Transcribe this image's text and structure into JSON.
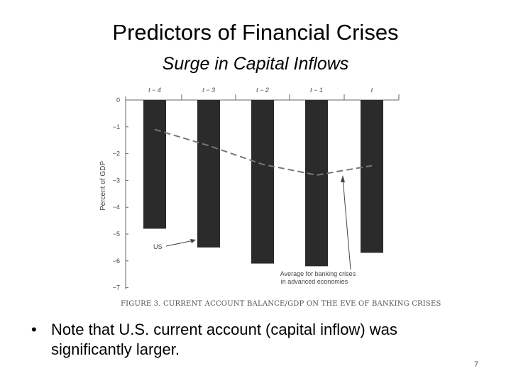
{
  "slide": {
    "title": "Predictors of Financial Crises",
    "subtitle": "Surge in Capital Inflows",
    "figure_caption": "FIGURE 3. CURRENT ACCOUNT BALANCE/GDP ON THE EVE OF BANKING CRISES",
    "bullet_marker": "•",
    "bullet_text": "Note that U.S. current account (capital inflow) was significantly larger.",
    "page_number": "7"
  },
  "chart_data": {
    "type": "bar",
    "categories": [
      "t − 4",
      "t − 3",
      "t − 2",
      "t − 1",
      "t"
    ],
    "ylabel": "Percent of GDP",
    "ylim": [
      -7,
      0
    ],
    "yticks": [
      0,
      -1,
      -2,
      -3,
      -4,
      -5,
      -6,
      -7
    ],
    "ytick_labels": [
      "0",
      "−1",
      "−2",
      "−3",
      "−4",
      "−5",
      "−6",
      "−7"
    ],
    "series": [
      {
        "name": "US",
        "type": "bar",
        "values": [
          -4.8,
          -5.5,
          -6.1,
          -6.2,
          -5.7
        ]
      },
      {
        "name": "Average for banking crises in advanced economies",
        "type": "line",
        "style": "dashed",
        "values": [
          -1.1,
          -1.7,
          -2.4,
          -2.8,
          -2.45
        ]
      }
    ],
    "annotations": [
      {
        "text": "US",
        "points_to": "t − 4 bar"
      },
      {
        "text": "Average for banking crises in advanced economies",
        "points_to": "dashed line at t − 1"
      }
    ],
    "grid": false,
    "colors": {
      "bars": "#2b2b2b",
      "line": "#777777",
      "axis": "#666666"
    }
  }
}
